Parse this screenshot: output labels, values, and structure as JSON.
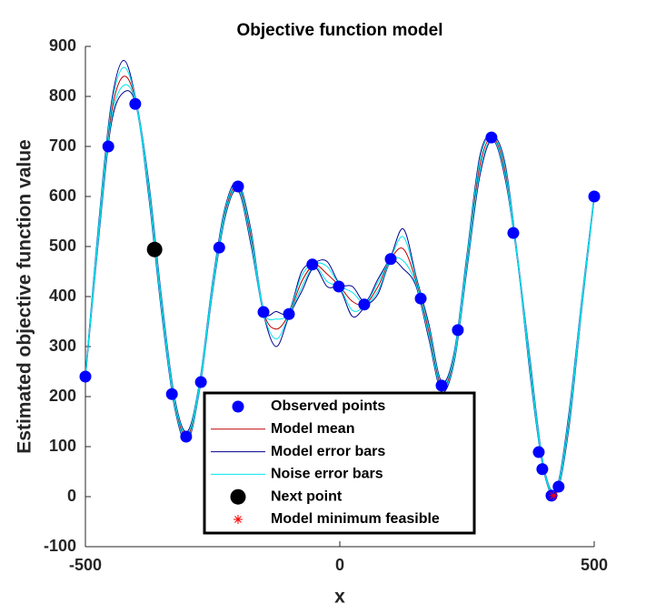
{
  "chart_data": {
    "type": "line",
    "title": "Objective function model",
    "xlabel": "x",
    "ylabel": "Estimated objective function value",
    "xlim": [
      -500,
      500
    ],
    "xticks": [
      -500,
      0,
      500
    ],
    "ylim": [
      -100,
      900
    ],
    "yticks": [
      -100,
      0,
      100,
      200,
      300,
      400,
      500,
      600,
      700,
      800,
      900
    ],
    "x": [
      -500,
      -475,
      -450,
      -425,
      -400,
      -375,
      -350,
      -325,
      -300,
      -275,
      -250,
      -225,
      -200,
      -175,
      -150,
      -125,
      -100,
      -75,
      -50,
      -25,
      0,
      25,
      50,
      75,
      100,
      125,
      150,
      175,
      200,
      225,
      250,
      275,
      300,
      325,
      350,
      375,
      400,
      425,
      450,
      475,
      500
    ],
    "series": [
      {
        "name": "Observed points",
        "color": "#0000ff",
        "x": [
          -500,
          -455,
          -402,
          -330,
          -302,
          -273,
          -237,
          -200,
          -150,
          -100,
          -54,
          -2,
          48,
          100,
          159,
          200,
          232,
          298,
          341,
          391,
          398,
          416,
          430,
          500
        ],
        "values": [
          240,
          700,
          785,
          205,
          120,
          229,
          498,
          620,
          369,
          365,
          464,
          420,
          384,
          475,
          396,
          222,
          333,
          718,
          527,
          89,
          55,
          2,
          20,
          600
        ]
      },
      {
        "name": "Model mean",
        "color": "#c00000",
        "values": [
          240,
          520,
          760,
          840,
          785,
          610,
          380,
          190,
          120,
          225,
          420,
          570,
          620,
          520,
          370,
          335,
          365,
          430,
          463,
          445,
          420,
          390,
          385,
          420,
          475,
          495,
          430,
          330,
          220,
          280,
          470,
          660,
          718,
          650,
          470,
          250,
          60,
          10,
          150,
          380,
          600
        ]
      },
      {
        "name": "Model error bars",
        "color": "#00008b",
        "upper": [
          243,
          535,
          780,
          872,
          790,
          625,
          395,
          200,
          130,
          233,
          430,
          580,
          628,
          535,
          375,
          370,
          370,
          450,
          468,
          470,
          425,
          420,
          390,
          435,
          480,
          535,
          440,
          345,
          230,
          290,
          485,
          680,
          723,
          665,
          475,
          265,
          65,
          15,
          165,
          390,
          603
        ],
        "lower": [
          237,
          505,
          740,
          808,
          780,
          595,
          365,
          180,
          110,
          217,
          410,
          560,
          612,
          505,
          365,
          300,
          360,
          410,
          458,
          420,
          415,
          360,
          380,
          405,
          470,
          455,
          420,
          315,
          210,
          270,
          455,
          640,
          713,
          635,
          465,
          235,
          55,
          5,
          135,
          370,
          597
        ]
      },
      {
        "name": "Noise error bars",
        "color": "#00e5ee",
        "upper": [
          242,
          529,
          772,
          858,
          788,
          619,
          389,
          196,
          126,
          230,
          426,
          576,
          625,
          529,
          373,
          355,
          368,
          442,
          466,
          460,
          423,
          408,
          388,
          429,
          478,
          519,
          436,
          339,
          226,
          286,
          479,
          672,
          721,
          659,
          473,
          259,
          63,
          13,
          159,
          386,
          602
        ],
        "lower": [
          238,
          511,
          748,
          822,
          782,
          601,
          371,
          184,
          114,
          220,
          414,
          564,
          615,
          511,
          367,
          315,
          362,
          418,
          460,
          430,
          417,
          372,
          382,
          411,
          472,
          471,
          424,
          321,
          214,
          274,
          461,
          648,
          715,
          641,
          467,
          241,
          57,
          7,
          141,
          374,
          598
        ]
      },
      {
        "name": "Next point",
        "color": "#000000",
        "x": [
          -364
        ],
        "values": [
          494
        ]
      },
      {
        "name": "Model minimum feasible",
        "color": "#ff0000",
        "x": [
          420
        ],
        "values": [
          2
        ]
      }
    ]
  }
}
